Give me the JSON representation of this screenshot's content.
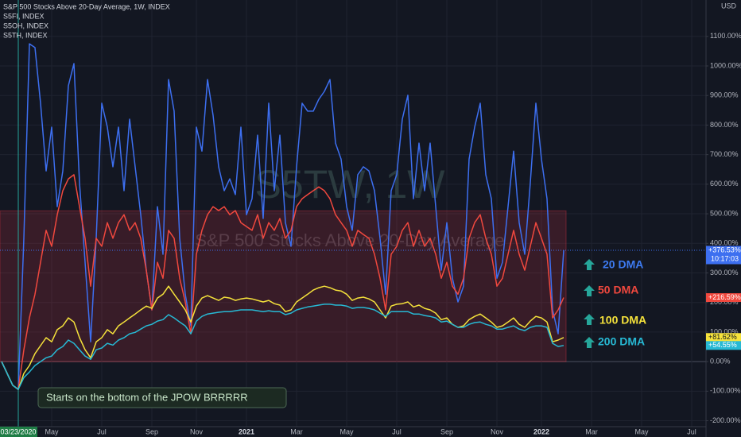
{
  "chart_data": {
    "type": "line",
    "title": "S&P 500 Stocks Above 20-Day Average, 1W, INDEX",
    "currency": "USD",
    "watermark": {
      "symbol": "S5TW, 1W",
      "description": "S&P 500 Stocks Above 20-Day Average"
    },
    "note": "Starts on the bottom of the JPOW BRRRRR",
    "annotations": [
      "20 DMA",
      "50 DMA",
      "100 DMA",
      "200 DMA"
    ],
    "categories": [
      null,
      null,
      null,
      "03/23/2020",
      null,
      null,
      null,
      null,
      null,
      "May",
      null,
      null,
      null,
      null,
      null,
      null,
      null,
      null,
      "Jul",
      null,
      null,
      null,
      null,
      null,
      null,
      null,
      null,
      "Sep",
      null,
      null,
      null,
      null,
      null,
      null,
      null,
      "Nov",
      null,
      null,
      null,
      null,
      null,
      null,
      null,
      null,
      "2021",
      null,
      null,
      null,
      null,
      null,
      null,
      null,
      null,
      "Mar",
      null,
      null,
      null,
      null,
      null,
      null,
      null,
      null,
      "May",
      null,
      null,
      null,
      null,
      null,
      null,
      null,
      null,
      "Jul",
      null,
      null,
      null,
      null,
      null,
      null,
      null,
      null,
      "Sep",
      null,
      null,
      null,
      null,
      null,
      null,
      null,
      null,
      "Nov",
      null,
      null,
      null,
      null,
      null,
      null,
      null,
      "2022",
      null,
      null,
      null,
      null,
      null,
      null,
      null,
      null,
      "Mar",
      null,
      null,
      null,
      null,
      null,
      null,
      null,
      null,
      "May",
      null,
      null,
      null,
      null,
      null,
      null,
      null,
      null,
      "Jul"
    ],
    "series": [
      {
        "name": "S&P 500 Stocks Above 20-Day Average, 1W, INDEX",
        "color": "#3d6ff0",
        "last_label": {
          "value": 376.53,
          "label": "+376.53%"
        },
        "countdown": "10:17:03",
        "values": [
          0,
          -40,
          -80,
          -94,
          417,
          1075,
          1062,
          874,
          645,
          793,
          524,
          645,
          933,
          1008,
          605,
          336,
          67,
          417,
          874,
          793,
          659,
          793,
          578,
          820,
          659,
          497,
          309,
          175,
          524,
          363,
          954,
          847,
          417,
          228,
          121,
          793,
          712,
          954,
          833,
          659,
          578,
          618,
          565,
          793,
          497,
          551,
          766,
          484,
          874,
          578,
          766,
          470,
          390,
          659,
          874,
          847,
          847,
          887,
          914,
          954,
          739,
          685,
          524,
          444,
          632,
          659,
          645,
          578,
          417,
          228,
          578,
          632,
          820,
          901,
          551,
          739,
          578,
          739,
          524,
          309,
          470,
          282,
          202,
          255,
          685,
          793,
          874,
          632,
          551,
          282,
          336,
          524,
          712,
          470,
          363,
          605,
          874,
          685,
          551,
          175,
          94,
          376.53,
          null,
          null,
          null,
          null,
          null,
          null,
          null,
          null,
          null,
          null,
          null,
          null,
          null,
          null,
          null,
          null,
          null,
          null,
          null,
          null,
          null,
          null,
          null
        ]
      },
      {
        "name": "S5FI, INDEX",
        "color": "#f0483e",
        "last_label": {
          "value": 216.59,
          "label": "+216.59%"
        },
        "values": [
          0,
          -40,
          -80,
          -94,
          40,
          148,
          228,
          336,
          444,
          390,
          497,
          578,
          618,
          632,
          524,
          417,
          255,
          417,
          390,
          470,
          417,
          470,
          497,
          444,
          470,
          417,
          309,
          175,
          336,
          282,
          444,
          417,
          282,
          202,
          94,
          363,
          444,
          497,
          524,
          511,
          524,
          497,
          511,
          470,
          457,
          444,
          497,
          417,
          470,
          444,
          484,
          417,
          444,
          524,
          551,
          565,
          578,
          591,
          578,
          551,
          497,
          470,
          444,
          390,
          444,
          430,
          417,
          363,
          282,
          175,
          363,
          390,
          444,
          470,
          390,
          444,
          390,
          417,
          363,
          282,
          336,
          255,
          228,
          282,
          417,
          470,
          497,
          417,
          363,
          255,
          282,
          363,
          444,
          363,
          309,
          390,
          470,
          417,
          363,
          148,
          175,
          216.59,
          null,
          null,
          null,
          null,
          null,
          null,
          null,
          null,
          null,
          null,
          null,
          null,
          null,
          null,
          null,
          null,
          null,
          null,
          null,
          null,
          null,
          null,
          null
        ]
      },
      {
        "name": "S5OH, INDEX",
        "color": "#f5e23b",
        "last_label": {
          "value": 81.62,
          "label": "+81.62%"
        },
        "values": [
          0,
          -40,
          -80,
          -94,
          -40,
          -13,
          27,
          54,
          81,
          67,
          108,
          121,
          148,
          134,
          81,
          40,
          13,
          67,
          81,
          108,
          94,
          121,
          134,
          148,
          161,
          175,
          188,
          180,
          215,
          228,
          255,
          228,
          202,
          175,
          134,
          188,
          215,
          223,
          215,
          207,
          218,
          215,
          207,
          212,
          215,
          212,
          207,
          202,
          207,
          196,
          191,
          169,
          175,
          202,
          215,
          228,
          242,
          250,
          255,
          250,
          242,
          239,
          228,
          207,
          215,
          218,
          212,
          202,
          175,
          148,
          188,
          194,
          196,
          202,
          185,
          191,
          180,
          175,
          164,
          142,
          148,
          126,
          116,
          121,
          142,
          153,
          161,
          148,
          134,
          116,
          121,
          134,
          148,
          126,
          116,
          137,
          153,
          148,
          134,
          67,
          73,
          81.62,
          null,
          null,
          null,
          null,
          null,
          null,
          null,
          null,
          null,
          null,
          null,
          null,
          null,
          null,
          null,
          null,
          null,
          null,
          null,
          null,
          null,
          null,
          null
        ]
      },
      {
        "name": "S5TH, INDEX",
        "color": "#27b9d4",
        "last_label": {
          "value": 54.55,
          "label": "+54.55%"
        },
        "values": [
          0,
          -40,
          -80,
          -94,
          -54,
          -35,
          -13,
          0,
          13,
          19,
          40,
          51,
          73,
          62,
          40,
          19,
          8,
          40,
          46,
          62,
          56,
          73,
          81,
          94,
          99,
          110,
          121,
          126,
          137,
          142,
          159,
          148,
          134,
          121,
          94,
          137,
          153,
          161,
          164,
          167,
          169,
          169,
          172,
          175,
          175,
          175,
          172,
          169,
          172,
          169,
          169,
          159,
          164,
          175,
          180,
          185,
          188,
          191,
          194,
          194,
          191,
          191,
          188,
          180,
          183,
          183,
          180,
          175,
          164,
          153,
          169,
          169,
          169,
          169,
          161,
          161,
          156,
          153,
          148,
          134,
          137,
          126,
          116,
          116,
          126,
          132,
          134,
          126,
          121,
          110,
          110,
          116,
          121,
          110,
          105,
          116,
          121,
          121,
          116,
          62,
          51,
          54.55,
          null,
          null,
          null,
          null,
          null,
          null,
          null,
          null,
          null,
          null,
          null,
          null,
          null,
          null,
          null,
          null,
          null,
          null,
          null,
          null,
          null,
          null,
          null
        ]
      }
    ],
    "shaded_range": [
      0,
      510
    ],
    "ylim": [
      -220,
      1223
    ],
    "yticks": [
      {
        "value": -200,
        "label": "-200.00%"
      },
      {
        "value": -100,
        "label": "-100.00%"
      },
      {
        "value": 0,
        "label": "0.00%"
      },
      {
        "value": 100,
        "label": "100.00%"
      },
      {
        "value": 200,
        "label": "200.00%"
      },
      {
        "value": 300,
        "label": "300.00%"
      },
      {
        "value": 400,
        "label": "400.00%"
      },
      {
        "value": 500,
        "label": "500.00%"
      },
      {
        "value": 600,
        "label": "600.00%"
      },
      {
        "value": 700,
        "label": "700.00%"
      },
      {
        "value": 800,
        "label": "800.00%"
      },
      {
        "value": 900,
        "label": "900.00%"
      },
      {
        "value": 1000,
        "label": "1000.00%"
      },
      {
        "value": 1100,
        "label": "1100.00%"
      }
    ],
    "grid": true
  }
}
